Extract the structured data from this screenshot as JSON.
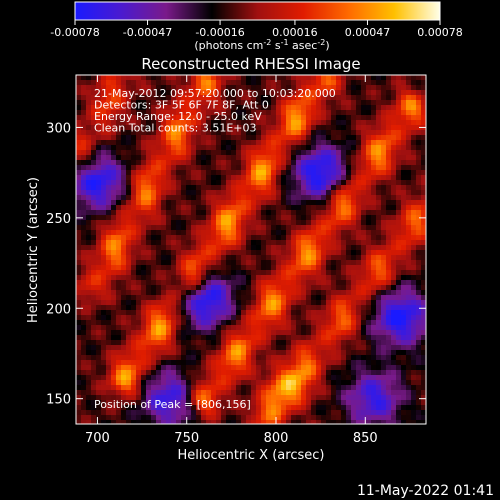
{
  "chart_data": {
    "type": "heatmap",
    "title": "Reconstructed RHESSI Image",
    "xlabel": "Heliocentric X (arcsec)",
    "ylabel": "Heliocentric Y (arcsec)",
    "xlim": [
      688,
      884
    ],
    "ylim": [
      136,
      329
    ],
    "x_ticks": [
      700,
      750,
      800,
      850
    ],
    "y_ticks": [
      150,
      200,
      250,
      300
    ],
    "colorbar": {
      "ticks": [
        "-0.00078",
        "-0.00047",
        "-0.00016",
        "0.00016",
        "0.00047",
        "0.00078"
      ],
      "tick_values": [
        -0.00078,
        -0.00047,
        -0.00016,
        0.00016,
        0.00047,
        0.00078
      ],
      "range": [
        -0.00078,
        0.00078
      ],
      "unit_prefix": "(photons cm",
      "unit_sup1": "-2",
      "unit_mid": " s",
      "unit_sup2": "-1",
      "unit_mid2": " asec",
      "unit_sup3": "-2",
      "unit_suffix": ")",
      "colormap": [
        "#1a1aff",
        "#4a1ad0",
        "#7a1a8a",
        "#000000",
        "#a01010",
        "#e01c00",
        "#ff6a00",
        "#ffc000",
        "#ffffe8"
      ]
    },
    "annotations": [
      "21-May-2012 09:57:20.000 to 10:03:20.000",
      "Detectors: 3F 5F 6F 7F 8F, Att 0",
      "Energy Range: 12.0 - 25.0 keV",
      "Clean    Total counts: 3.51E+03"
    ],
    "peak_label": "Position of Peak = [806,156]",
    "peak_position": [
      806,
      156
    ],
    "structure": "diagonal positive ridges running from lower-left to upper-right, alternating with negative (blue/purple) blobs",
    "ridges": [
      {
        "from": [
          700,
          215
        ],
        "to": [
          760,
          325
        ],
        "level": 0.7
      },
      {
        "from": [
          715,
          160
        ],
        "to": [
          825,
          325
        ],
        "level": 0.8
      },
      {
        "from": [
          760,
          150
        ],
        "to": [
          875,
          310
        ],
        "level": 0.75
      },
      {
        "from": [
          795,
          140
        ],
        "to": [
          884,
          255
        ],
        "level": 0.6
      },
      {
        "from": [
          690,
          285
        ],
        "to": [
          715,
          330
        ],
        "level": 0.5
      }
    ],
    "peak_blob": {
      "center": [
        806,
        156
      ],
      "level": 1.0
    },
    "negative_blobs": [
      {
        "center": [
          760,
          205
        ],
        "level": -0.9
      },
      {
        "center": [
          825,
          275
        ],
        "level": -0.85
      },
      {
        "center": [
          700,
          270
        ],
        "level": -0.8
      },
      {
        "center": [
          870,
          195
        ],
        "level": -0.85
      },
      {
        "center": [
          740,
          150
        ],
        "level": -0.7
      },
      {
        "center": [
          855,
          150
        ],
        "level": -0.7
      }
    ]
  },
  "footer": {
    "timestamp": "11-May-2022 01:41"
  }
}
